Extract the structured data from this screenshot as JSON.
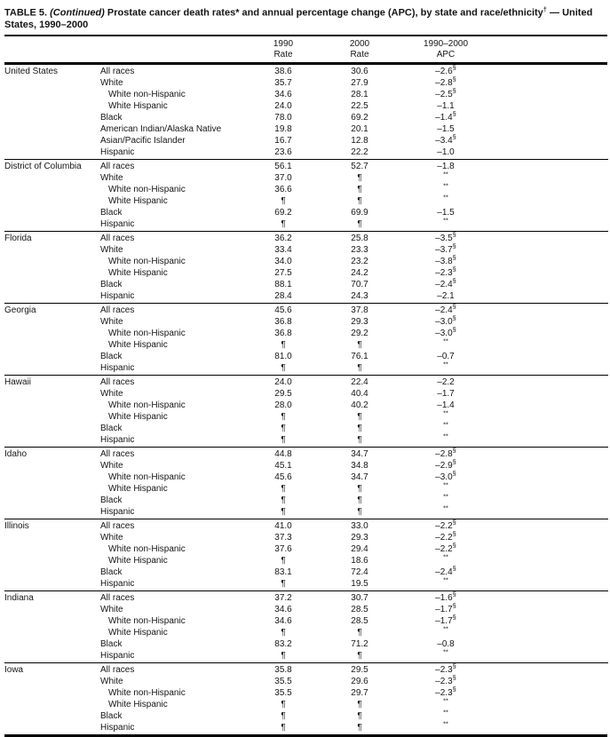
{
  "title": {
    "label": "TABLE 5. ",
    "continued": "(Continued) ",
    "text": "Prostate cancer death rates* and annual percentage change (APC), by state and race/ethnicity",
    "dagger": "†",
    "tail": " — United States, 1990–2000"
  },
  "headers": [
    {
      "line1": "1990",
      "line2": "Rate"
    },
    {
      "line1": "2000",
      "line2": "Rate"
    },
    {
      "line1": "1990–2000",
      "line2": "APC"
    }
  ],
  "sections": [
    {
      "state": "United States",
      "rows": [
        {
          "race": "All races",
          "indent": false,
          "r1990": "38.6",
          "r2000": "30.6",
          "apc": "–2.6",
          "apc_sup": "§"
        },
        {
          "race": "White",
          "indent": false,
          "r1990": "35.7",
          "r2000": "27.9",
          "apc": "–2.8",
          "apc_sup": "§"
        },
        {
          "race": "White non-Hispanic",
          "indent": true,
          "r1990": "34.6",
          "r2000": "28.1",
          "apc": "–2.5",
          "apc_sup": "§"
        },
        {
          "race": "White Hispanic",
          "indent": true,
          "r1990": "24.0",
          "r2000": "22.5",
          "apc": "–1.1",
          "apc_sup": ""
        },
        {
          "race": "Black",
          "indent": false,
          "r1990": "78.0",
          "r2000": "69.2",
          "apc": "–1.4",
          "apc_sup": "§"
        },
        {
          "race": "American Indian/Alaska Native",
          "indent": false,
          "r1990": "19.8",
          "r2000": "20.1",
          "apc": "–1.5",
          "apc_sup": ""
        },
        {
          "race": "Asian/Pacific Islander",
          "indent": false,
          "r1990": "16.7",
          "r2000": "12.8",
          "apc": "–3.4",
          "apc_sup": "§"
        },
        {
          "race": "Hispanic",
          "indent": false,
          "r1990": "23.6",
          "r2000": "22.2",
          "apc": "–1.0",
          "apc_sup": ""
        }
      ]
    },
    {
      "state": "District of Columbia",
      "rows": [
        {
          "race": "All races",
          "indent": false,
          "r1990": "56.1",
          "r2000": "52.7",
          "apc": "–1.8",
          "apc_sup": ""
        },
        {
          "race": "White",
          "indent": false,
          "r1990": "37.0",
          "r2000": "¶",
          "apc": "",
          "apc_sup": "**"
        },
        {
          "race": "White non-Hispanic",
          "indent": true,
          "r1990": "36.6",
          "r2000": "¶",
          "apc": "",
          "apc_sup": "**"
        },
        {
          "race": "White Hispanic",
          "indent": true,
          "r1990": "¶",
          "r2000": "¶",
          "apc": "",
          "apc_sup": "**"
        },
        {
          "race": "Black",
          "indent": false,
          "r1990": "69.2",
          "r2000": "69.9",
          "apc": "–1.5",
          "apc_sup": ""
        },
        {
          "race": "Hispanic",
          "indent": false,
          "r1990": "¶",
          "r2000": "¶",
          "apc": "",
          "apc_sup": "**"
        }
      ]
    },
    {
      "state": "Florida",
      "rows": [
        {
          "race": "All races",
          "indent": false,
          "r1990": "36.2",
          "r2000": "25.8",
          "apc": "–3.5",
          "apc_sup": "§"
        },
        {
          "race": "White",
          "indent": false,
          "r1990": "33.4",
          "r2000": "23.3",
          "apc": "–3.7",
          "apc_sup": "§"
        },
        {
          "race": "White non-Hispanic",
          "indent": true,
          "r1990": "34.0",
          "r2000": "23.2",
          "apc": "–3.8",
          "apc_sup": "§"
        },
        {
          "race": "White Hispanic",
          "indent": true,
          "r1990": "27.5",
          "r2000": "24.2",
          "apc": "–2.3",
          "apc_sup": "§"
        },
        {
          "race": "Black",
          "indent": false,
          "r1990": "88.1",
          "r2000": "70.7",
          "apc": "–2.4",
          "apc_sup": "§"
        },
        {
          "race": "Hispanic",
          "indent": false,
          "r1990": "28.4",
          "r2000": "24.3",
          "apc": "–2.1",
          "apc_sup": ""
        }
      ]
    },
    {
      "state": "Georgia",
      "rows": [
        {
          "race": "All races",
          "indent": false,
          "r1990": "45.6",
          "r2000": "37.8",
          "apc": "–2.4",
          "apc_sup": "§"
        },
        {
          "race": "White",
          "indent": false,
          "r1990": "36.8",
          "r2000": "29.3",
          "apc": "–3.0",
          "apc_sup": "§"
        },
        {
          "race": "White non-Hispanic",
          "indent": true,
          "r1990": "36.8",
          "r2000": "29.2",
          "apc": "–3.0",
          "apc_sup": "§"
        },
        {
          "race": "White Hispanic",
          "indent": true,
          "r1990": "¶",
          "r2000": "¶",
          "apc": "",
          "apc_sup": "**"
        },
        {
          "race": "Black",
          "indent": false,
          "r1990": "81.0",
          "r2000": "76.1",
          "apc": "–0.7",
          "apc_sup": ""
        },
        {
          "race": "Hispanic",
          "indent": false,
          "r1990": "¶",
          "r2000": "¶",
          "apc": "",
          "apc_sup": "**"
        }
      ]
    },
    {
      "state": "Hawaii",
      "rows": [
        {
          "race": "All races",
          "indent": false,
          "r1990": "24.0",
          "r2000": "22.4",
          "apc": "–2.2",
          "apc_sup": ""
        },
        {
          "race": "White",
          "indent": false,
          "r1990": "29.5",
          "r2000": "40.4",
          "apc": "–1.7",
          "apc_sup": ""
        },
        {
          "race": "White non-Hispanic",
          "indent": true,
          "r1990": "28.0",
          "r2000": "40.2",
          "apc": "–1.4",
          "apc_sup": ""
        },
        {
          "race": "White Hispanic",
          "indent": true,
          "r1990": "¶",
          "r2000": "¶",
          "apc": "",
          "apc_sup": "**"
        },
        {
          "race": "Black",
          "indent": false,
          "r1990": "¶",
          "r2000": "¶",
          "apc": "",
          "apc_sup": "**"
        },
        {
          "race": "Hispanic",
          "indent": false,
          "r1990": "¶",
          "r2000": "¶",
          "apc": "",
          "apc_sup": "**"
        }
      ]
    },
    {
      "state": "Idaho",
      "rows": [
        {
          "race": "All races",
          "indent": false,
          "r1990": "44.8",
          "r2000": "34.7",
          "apc": "–2.8",
          "apc_sup": "§"
        },
        {
          "race": "White",
          "indent": false,
          "r1990": "45.1",
          "r2000": "34.8",
          "apc": "–2.9",
          "apc_sup": "§"
        },
        {
          "race": "White non-Hispanic",
          "indent": true,
          "r1990": "45.6",
          "r2000": "34.7",
          "apc": "–3.0",
          "apc_sup": "§"
        },
        {
          "race": "White Hispanic",
          "indent": true,
          "r1990": "¶",
          "r2000": "¶",
          "apc": "",
          "apc_sup": "**"
        },
        {
          "race": "Black",
          "indent": false,
          "r1990": "¶",
          "r2000": "¶",
          "apc": "",
          "apc_sup": "**"
        },
        {
          "race": "Hispanic",
          "indent": false,
          "r1990": "¶",
          "r2000": "¶",
          "apc": "",
          "apc_sup": "**"
        }
      ]
    },
    {
      "state": "Illinois",
      "rows": [
        {
          "race": "All races",
          "indent": false,
          "r1990": "41.0",
          "r2000": "33.0",
          "apc": "–2.2",
          "apc_sup": "§"
        },
        {
          "race": "White",
          "indent": false,
          "r1990": "37.3",
          "r2000": "29.3",
          "apc": "–2.2",
          "apc_sup": "§"
        },
        {
          "race": "White non-Hispanic",
          "indent": true,
          "r1990": "37.6",
          "r2000": "29.4",
          "apc": "–2.2",
          "apc_sup": "§"
        },
        {
          "race": "White Hispanic",
          "indent": true,
          "r1990": "¶",
          "r2000": "18.6",
          "apc": "",
          "apc_sup": "**"
        },
        {
          "race": "Black",
          "indent": false,
          "r1990": "83.1",
          "r2000": "72.4",
          "apc": "–2.4",
          "apc_sup": "§"
        },
        {
          "race": "Hispanic",
          "indent": false,
          "r1990": "¶",
          "r2000": "19.5",
          "apc": "",
          "apc_sup": "**"
        }
      ]
    },
    {
      "state": "Indiana",
      "rows": [
        {
          "race": "All races",
          "indent": false,
          "r1990": "37.2",
          "r2000": "30.7",
          "apc": "–1.6",
          "apc_sup": "§"
        },
        {
          "race": "White",
          "indent": false,
          "r1990": "34.6",
          "r2000": "28.5",
          "apc": "–1.7",
          "apc_sup": "§"
        },
        {
          "race": "White non-Hispanic",
          "indent": true,
          "r1990": "34.6",
          "r2000": "28.5",
          "apc": "–1.7",
          "apc_sup": "§"
        },
        {
          "race": "White Hispanic",
          "indent": true,
          "r1990": "¶",
          "r2000": "¶",
          "apc": "",
          "apc_sup": "**"
        },
        {
          "race": "Black",
          "indent": false,
          "r1990": "83.2",
          "r2000": "71.2",
          "apc": "–0.8",
          "apc_sup": ""
        },
        {
          "race": "Hispanic",
          "indent": false,
          "r1990": "¶",
          "r2000": "¶",
          "apc": "",
          "apc_sup": "**"
        }
      ]
    },
    {
      "state": "Iowa",
      "rows": [
        {
          "race": "All races",
          "indent": false,
          "r1990": "35.8",
          "r2000": "29.5",
          "apc": "–2.3",
          "apc_sup": "§"
        },
        {
          "race": "White",
          "indent": false,
          "r1990": "35.5",
          "r2000": "29.6",
          "apc": "–2.3",
          "apc_sup": "§"
        },
        {
          "race": "White non-Hispanic",
          "indent": true,
          "r1990": "35.5",
          "r2000": "29.7",
          "apc": "–2.3",
          "apc_sup": "§"
        },
        {
          "race": "White Hispanic",
          "indent": true,
          "r1990": "¶",
          "r2000": "¶",
          "apc": "",
          "apc_sup": "**"
        },
        {
          "race": "Black",
          "indent": false,
          "r1990": "¶",
          "r2000": "¶",
          "apc": "",
          "apc_sup": "**"
        },
        {
          "race": "Hispanic",
          "indent": false,
          "r1990": "¶",
          "r2000": "¶",
          "apc": "",
          "apc_sup": "**"
        }
      ]
    }
  ]
}
